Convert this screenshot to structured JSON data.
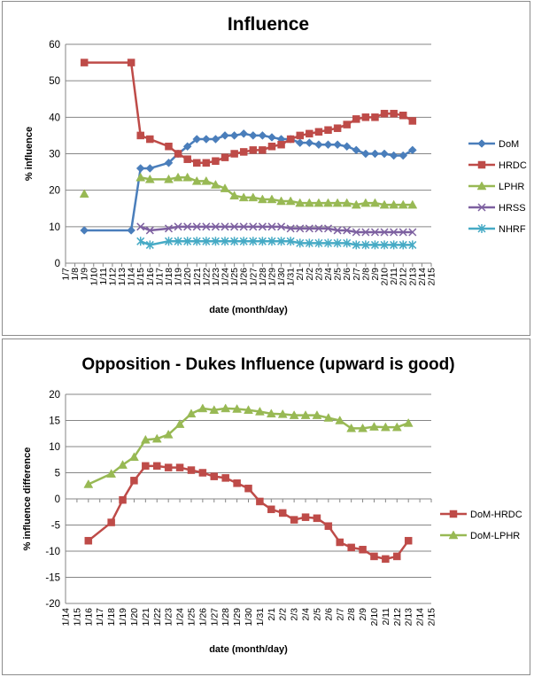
{
  "chart_data": [
    {
      "type": "line",
      "title": "Influence",
      "xlabel": "date (month/day)",
      "ylabel": "% influence",
      "ylim": [
        0,
        60
      ],
      "yticks": [
        0,
        10,
        20,
        30,
        40,
        50,
        60
      ],
      "xlim_days": [
        7,
        46
      ],
      "x_tick_labels": [
        "1/7",
        "1/8",
        "1/9",
        "1/10",
        "1/11",
        "1/12",
        "1/13",
        "1/14",
        "1/15",
        "1/16",
        "1/17",
        "1/18",
        "1/19",
        "1/20",
        "1/21",
        "1/22",
        "1/23",
        "1/24",
        "1/25",
        "1/26",
        "1/27",
        "1/28",
        "1/29",
        "1/30",
        "1/31",
        "2/1",
        "2/2",
        "2/3",
        "2/4",
        "2/5",
        "2/6",
        "2/7",
        "2/8",
        "2/9",
        "2/10",
        "2/11",
        "2/12",
        "2/13",
        "2/14",
        "2/15"
      ],
      "legend_position": "right",
      "series": [
        {
          "name": "DoM",
          "color": "#4a7ebb",
          "marker": "diamond",
          "points": [
            [
              9,
              9
            ],
            [
              14,
              9
            ],
            [
              15,
              26
            ],
            [
              16,
              26
            ],
            [
              18,
              27.5
            ],
            [
              19,
              30
            ],
            [
              20,
              32
            ],
            [
              21,
              34
            ],
            [
              22,
              34
            ],
            [
              23,
              34
            ],
            [
              24,
              35
            ],
            [
              25,
              35
            ],
            [
              26,
              35.5
            ],
            [
              27,
              35
            ],
            [
              28,
              35
            ],
            [
              29,
              34.5
            ],
            [
              30,
              34
            ],
            [
              31,
              34
            ],
            [
              32,
              33
            ],
            [
              33,
              33
            ],
            [
              34,
              32.5
            ],
            [
              35,
              32.5
            ],
            [
              36,
              32.5
            ],
            [
              37,
              32
            ],
            [
              38,
              31
            ],
            [
              39,
              30
            ],
            [
              40,
              30
            ],
            [
              41,
              30
            ],
            [
              42,
              29.5
            ],
            [
              43,
              29.5
            ],
            [
              44,
              31
            ]
          ]
        },
        {
          "name": "HRDC",
          "color": "#be4b48",
          "marker": "square",
          "points": [
            [
              9,
              55
            ],
            [
              14,
              55
            ],
            [
              15,
              35
            ],
            [
              16,
              34
            ],
            [
              18,
              32
            ],
            [
              19,
              30
            ],
            [
              20,
              28.5
            ],
            [
              21,
              27.5
            ],
            [
              22,
              27.5
            ],
            [
              23,
              28
            ],
            [
              24,
              29
            ],
            [
              25,
              30
            ],
            [
              26,
              30.5
            ],
            [
              27,
              31
            ],
            [
              28,
              31
            ],
            [
              29,
              32
            ],
            [
              30,
              32.5
            ],
            [
              31,
              34
            ],
            [
              32,
              35
            ],
            [
              33,
              35.5
            ],
            [
              34,
              36
            ],
            [
              35,
              36.5
            ],
            [
              36,
              37
            ],
            [
              37,
              38
            ],
            [
              38,
              39.5
            ],
            [
              39,
              40
            ],
            [
              40,
              40
            ],
            [
              41,
              41
            ],
            [
              42,
              41
            ],
            [
              43,
              40.5
            ],
            [
              44,
              39
            ]
          ]
        },
        {
          "name": "LPHR",
          "color": "#98b954",
          "marker": "triangle",
          "points": [
            [
              9,
              19
            ],
            [
              15,
              23.5
            ],
            [
              16,
              23
            ],
            [
              18,
              23
            ],
            [
              19,
              23.5
            ],
            [
              20,
              23.5
            ],
            [
              21,
              22.5
            ],
            [
              22,
              22.5
            ],
            [
              23,
              21.5
            ],
            [
              24,
              20.5
            ],
            [
              25,
              18.5
            ],
            [
              26,
              18
            ],
            [
              27,
              18
            ],
            [
              28,
              17.5
            ],
            [
              29,
              17.5
            ],
            [
              30,
              17
            ],
            [
              31,
              17
            ],
            [
              32,
              16.5
            ],
            [
              33,
              16.5
            ],
            [
              34,
              16.5
            ],
            [
              35,
              16.5
            ],
            [
              36,
              16.5
            ],
            [
              37,
              16.5
            ],
            [
              38,
              16
            ],
            [
              39,
              16.5
            ],
            [
              40,
              16.5
            ],
            [
              41,
              16
            ],
            [
              42,
              16
            ],
            [
              43,
              16
            ],
            [
              44,
              16
            ]
          ],
          "gap_after_first": true
        },
        {
          "name": "HRSS",
          "color": "#7d60a0",
          "marker": "x",
          "points": [
            [
              15,
              10
            ],
            [
              16,
              9
            ],
            [
              18,
              9.5
            ],
            [
              19,
              10
            ],
            [
              20,
              10
            ],
            [
              21,
              10
            ],
            [
              22,
              10
            ],
            [
              23,
              10
            ],
            [
              24,
              10
            ],
            [
              25,
              10
            ],
            [
              26,
              10
            ],
            [
              27,
              10
            ],
            [
              28,
              10
            ],
            [
              29,
              10
            ],
            [
              30,
              10
            ],
            [
              31,
              9.5
            ],
            [
              32,
              9.5
            ],
            [
              33,
              9.5
            ],
            [
              34,
              9.5
            ],
            [
              35,
              9.5
            ],
            [
              36,
              9
            ],
            [
              37,
              9
            ],
            [
              38,
              8.5
            ],
            [
              39,
              8.5
            ],
            [
              40,
              8.5
            ],
            [
              41,
              8.5
            ],
            [
              42,
              8.5
            ],
            [
              43,
              8.5
            ],
            [
              44,
              8.5
            ]
          ]
        },
        {
          "name": "NHRF",
          "color": "#46aac5",
          "marker": "star",
          "points": [
            [
              15,
              6
            ],
            [
              16,
              5
            ],
            [
              18,
              6
            ],
            [
              19,
              6
            ],
            [
              20,
              6
            ],
            [
              21,
              6
            ],
            [
              22,
              6
            ],
            [
              23,
              6
            ],
            [
              24,
              6
            ],
            [
              25,
              6
            ],
            [
              26,
              6
            ],
            [
              27,
              6
            ],
            [
              28,
              6
            ],
            [
              29,
              6
            ],
            [
              30,
              6
            ],
            [
              31,
              6
            ],
            [
              32,
              5.5
            ],
            [
              33,
              5.5
            ],
            [
              34,
              5.5
            ],
            [
              35,
              5.5
            ],
            [
              36,
              5.5
            ],
            [
              37,
              5.5
            ],
            [
              38,
              5
            ],
            [
              39,
              5
            ],
            [
              40,
              5
            ],
            [
              41,
              5
            ],
            [
              42,
              5
            ],
            [
              43,
              5
            ],
            [
              44,
              5
            ]
          ]
        }
      ]
    },
    {
      "type": "line",
      "title": "Opposition - Dukes Influence (upward is good)",
      "xlabel": "date (month/day)",
      "ylabel": "% influence difference",
      "ylim": [
        -20,
        20
      ],
      "yticks": [
        -20,
        -15,
        -10,
        -5,
        0,
        5,
        10,
        15,
        20
      ],
      "xlim_days": [
        14,
        46
      ],
      "x_tick_labels": [
        "1/14",
        "1/15",
        "1/16",
        "1/17",
        "1/18",
        "1/19",
        "1/20",
        "1/21",
        "1/22",
        "1/23",
        "1/24",
        "1/25",
        "1/26",
        "1/27",
        "1/28",
        "1/29",
        "1/30",
        "1/31",
        "2/1",
        "2/2",
        "2/3",
        "2/4",
        "2/5",
        "2/6",
        "2/7",
        "2/8",
        "2/9",
        "2/10",
        "2/11",
        "2/12",
        "2/13",
        "2/14",
        "2/15"
      ],
      "legend_position": "right",
      "series": [
        {
          "name": "DoM-HRDC",
          "color": "#be4b48",
          "marker": "square",
          "points": [
            [
              16,
              -8
            ],
            [
              18,
              -4.5
            ],
            [
              19,
              -0.2
            ],
            [
              20,
              3.5
            ],
            [
              21,
              6.3
            ],
            [
              22,
              6.3
            ],
            [
              23,
              6
            ],
            [
              24,
              6
            ],
            [
              25,
              5.5
            ],
            [
              26,
              5
            ],
            [
              27,
              4.3
            ],
            [
              28,
              4
            ],
            [
              29,
              3
            ],
            [
              30,
              2
            ],
            [
              31,
              -0.5
            ],
            [
              32,
              -2
            ],
            [
              33,
              -2.7
            ],
            [
              34,
              -4
            ],
            [
              35,
              -3.5
            ],
            [
              36,
              -3.7
            ],
            [
              37,
              -5.2
            ],
            [
              38,
              -8.3
            ],
            [
              39,
              -9.3
            ],
            [
              40,
              -9.7
            ],
            [
              41,
              -11
            ],
            [
              42,
              -11.5
            ],
            [
              43,
              -11
            ],
            [
              44,
              -8
            ]
          ]
        },
        {
          "name": "DoM-LPHR",
          "color": "#98b954",
          "marker": "triangle",
          "points": [
            [
              16,
              2.8
            ],
            [
              18,
              4.8
            ],
            [
              19,
              6.5
            ],
            [
              20,
              8
            ],
            [
              21,
              11.3
            ],
            [
              22,
              11.5
            ],
            [
              23,
              12.3
            ],
            [
              24,
              14.3
            ],
            [
              25,
              16.3
            ],
            [
              26,
              17.3
            ],
            [
              27,
              17
            ],
            [
              28,
              17.3
            ],
            [
              29,
              17.2
            ],
            [
              30,
              17
            ],
            [
              31,
              16.7
            ],
            [
              32,
              16.3
            ],
            [
              33,
              16.2
            ],
            [
              34,
              16
            ],
            [
              35,
              16
            ],
            [
              36,
              16
            ],
            [
              37,
              15.5
            ],
            [
              38,
              15
            ],
            [
              39,
              13.5
            ],
            [
              40,
              13.5
            ],
            [
              41,
              13.8
            ],
            [
              42,
              13.7
            ],
            [
              43,
              13.7
            ],
            [
              44,
              14.5
            ]
          ]
        }
      ]
    }
  ]
}
